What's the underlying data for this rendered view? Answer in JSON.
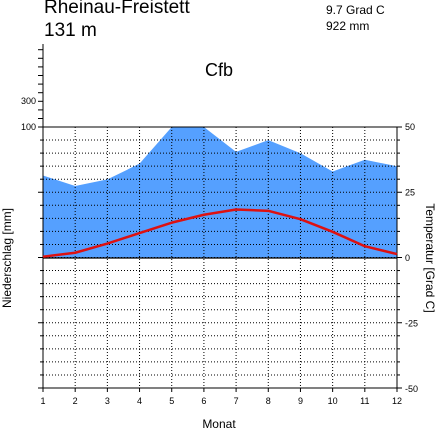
{
  "header": {
    "station": "Rheinau-Freistett",
    "elevation": "131 m",
    "mean_temperature": "9.7 Grad C",
    "annual_precipitation": "922 mm",
    "climate_class": "Cfb"
  },
  "chart_data": {
    "type": "area",
    "xlabel": "Monat",
    "ylabel_left": "Niederschlag [mm]",
    "ylabel_right": "Temperatur [Grad C]",
    "x": [
      1,
      2,
      3,
      4,
      5,
      6,
      7,
      8,
      9,
      10,
      11,
      12
    ],
    "x_ticks": [
      "1",
      "2",
      "3",
      "4",
      "5",
      "6",
      "7",
      "8",
      "9",
      "10",
      "11",
      "12"
    ],
    "left_ticks": [
      "300",
      "100"
    ],
    "right_ticks": [
      "50",
      "25",
      "0",
      "-25",
      "-50"
    ],
    "precip_ylim": [
      -100,
      100
    ],
    "temp_ylim": [
      -50,
      50
    ],
    "grid": true,
    "series": [
      {
        "id": "precipitation",
        "color": "#55a0ff",
        "values": [
          63,
          55,
          60,
          72,
          100,
          100,
          81,
          90,
          80,
          66,
          75,
          70
        ]
      },
      {
        "id": "temperature",
        "color": "#dd1111",
        "values": [
          0.5,
          2.0,
          5.5,
          9.5,
          13.5,
          16.5,
          18.5,
          18.0,
          14.8,
          10.0,
          4.5,
          1.5
        ]
      }
    ]
  }
}
